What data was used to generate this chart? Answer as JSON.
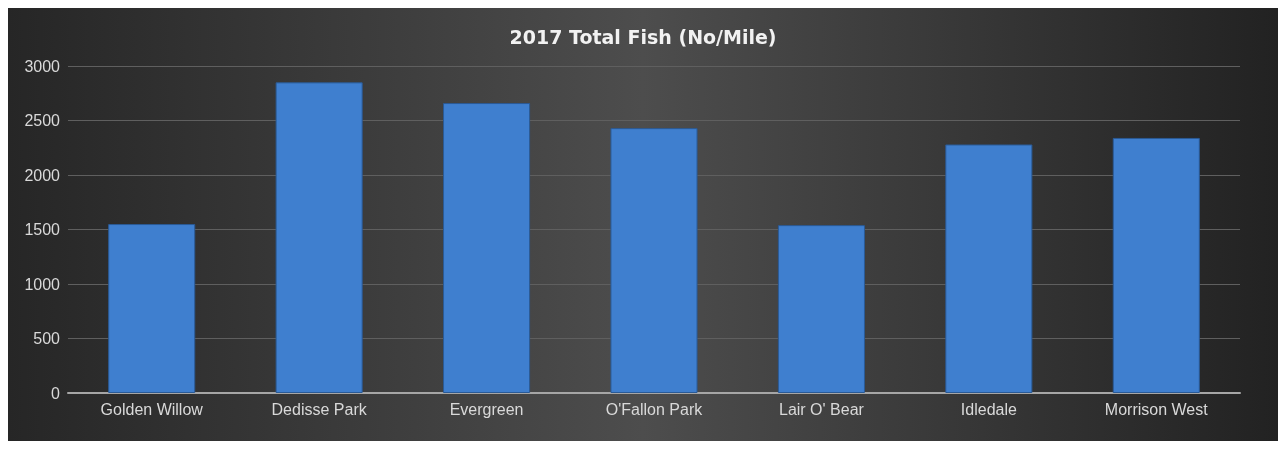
{
  "chart_data": {
    "type": "bar",
    "title": "2017 Total Fish (No/Mile)",
    "categories": [
      "Golden Willow",
      "Dedisse Park",
      "Evergreen",
      "O'Fallon Park",
      "Lair O' Bear",
      "Idledale",
      "Morrison West"
    ],
    "values": [
      1550,
      2850,
      2660,
      2430,
      1540,
      2280,
      2340
    ],
    "color": "#3f7fcf",
    "ylim": [
      0,
      3000
    ],
    "yticks": [
      0,
      500,
      1000,
      1500,
      2000,
      2500,
      3000
    ],
    "grid": "y"
  }
}
